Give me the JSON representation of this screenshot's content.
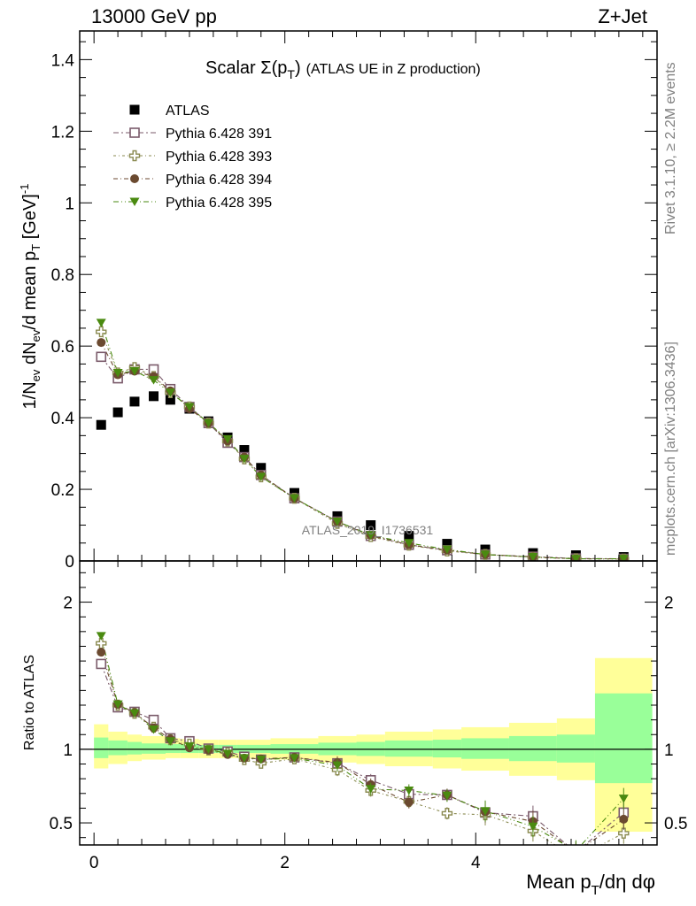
{
  "header": {
    "left": "13000 GeV pp",
    "right": "Z+Jet"
  },
  "side_labels": {
    "rivet": "Rivet 3.1.10, ≥ 2.2M events",
    "mcplots": "mcplots.cern.ch [arXiv:1306.3436]"
  },
  "watermark": "ATLAS_2019_I1736531",
  "colors": {
    "atlas": "#000000",
    "p391": "#7a5a6a",
    "p393": "#8a8a50",
    "p394": "#6b4a30",
    "p395": "#4a8a10",
    "band_green": "#99ff99",
    "band_yellow": "#ffff99"
  },
  "chart_data": [
    {
      "type": "scatter",
      "panel": "main",
      "title_main": "Scalar Σ(p",
      "title_sub": "T",
      "title_paren": ")",
      "title_rest": "(ATLAS UE in Z production)",
      "ylabel": "1/N_ev dN_ev/d mean p_T [GeV]^-1",
      "ylim": [
        0,
        1.48
      ],
      "yticks": [
        "0",
        "0.2",
        "0.4",
        "0.6",
        "0.8",
        "1",
        "1.2",
        "1.4"
      ],
      "ytick_values": [
        0,
        0.2,
        0.4,
        0.6,
        0.8,
        1.0,
        1.2,
        1.4
      ],
      "xlim": [
        -0.15,
        5.9
      ],
      "x": [
        0.075,
        0.25,
        0.425,
        0.625,
        0.8,
        1.0,
        1.2,
        1.4,
        1.575,
        1.75,
        2.1,
        2.55,
        2.9,
        3.3,
        3.7,
        4.1,
        4.6,
        5.05,
        5.55
      ],
      "series": [
        {
          "name": "ATLAS",
          "marker": "filled-square",
          "values": [
            0.38,
            0.415,
            0.445,
            0.46,
            0.45,
            0.425,
            0.39,
            0.345,
            0.31,
            0.26,
            0.19,
            0.125,
            0.1,
            0.07,
            0.048,
            0.032,
            0.022,
            0.016,
            0.011
          ]
        },
        {
          "name": "Pythia 6.428 391",
          "marker": "open-square",
          "values": [
            0.57,
            0.51,
            0.535,
            0.535,
            0.48,
            0.43,
            0.385,
            0.33,
            0.29,
            0.24,
            0.175,
            0.11,
            0.07,
            0.045,
            0.03,
            0.018,
            0.012,
            0.007,
            0.006
          ]
        },
        {
          "name": "Pythia 6.428 393",
          "marker": "open-cross",
          "values": [
            0.64,
            0.525,
            0.54,
            0.515,
            0.47,
            0.43,
            0.385,
            0.335,
            0.285,
            0.235,
            0.175,
            0.105,
            0.068,
            0.044,
            0.028,
            0.018,
            0.01,
            0.006,
            0.005
          ]
        },
        {
          "name": "Pythia 6.428 394",
          "marker": "filled-circle",
          "values": [
            0.61,
            0.52,
            0.53,
            0.515,
            0.475,
            0.425,
            0.385,
            0.335,
            0.29,
            0.24,
            0.175,
            0.11,
            0.072,
            0.045,
            0.03,
            0.018,
            0.011,
            0.006,
            0.006
          ]
        },
        {
          "name": "Pythia 6.428 395",
          "marker": "filled-triangle-down",
          "values": [
            0.665,
            0.525,
            0.53,
            0.505,
            0.47,
            0.43,
            0.385,
            0.34,
            0.285,
            0.235,
            0.175,
            0.11,
            0.072,
            0.05,
            0.032,
            0.018,
            0.011,
            0.006,
            0.006
          ]
        }
      ]
    },
    {
      "type": "scatter",
      "panel": "ratio",
      "ylabel": "Ratio to ATLAS",
      "ylim": [
        0.35,
        2.28
      ],
      "yticks": [
        "0.5",
        "1",
        "2"
      ],
      "ytick_values": [
        0.5,
        1,
        2
      ],
      "xlabel": "Mean p_T/dη dφ",
      "xticks": [
        "0",
        "2",
        "4"
      ],
      "xtick_values": [
        0,
        2,
        4
      ],
      "bin_edges": [
        0,
        0.15,
        0.35,
        0.5,
        0.75,
        0.9,
        1.1,
        1.3,
        1.5,
        1.65,
        1.85,
        2.35,
        2.75,
        3.05,
        3.55,
        3.85,
        4.35,
        4.85,
        5.25,
        5.85
      ],
      "band_green": [
        [
          0.94,
          1.08
        ],
        [
          0.96,
          1.06
        ],
        [
          0.965,
          1.05
        ],
        [
          0.97,
          1.04
        ],
        [
          0.975,
          1.035
        ],
        [
          0.975,
          1.035
        ],
        [
          0.975,
          1.03
        ],
        [
          0.975,
          1.03
        ],
        [
          0.975,
          1.03
        ],
        [
          0.975,
          1.03
        ],
        [
          0.97,
          1.035
        ],
        [
          0.96,
          1.045
        ],
        [
          0.955,
          1.05
        ],
        [
          0.95,
          1.06
        ],
        [
          0.945,
          1.065
        ],
        [
          0.935,
          1.075
        ],
        [
          0.92,
          1.09
        ],
        [
          0.91,
          1.1
        ],
        [
          0.77,
          1.38
        ]
      ],
      "band_yellow": [
        [
          0.87,
          1.17
        ],
        [
          0.9,
          1.12
        ],
        [
          0.92,
          1.1
        ],
        [
          0.93,
          1.09
        ],
        [
          0.94,
          1.075
        ],
        [
          0.94,
          1.07
        ],
        [
          0.94,
          1.065
        ],
        [
          0.94,
          1.065
        ],
        [
          0.94,
          1.065
        ],
        [
          0.94,
          1.065
        ],
        [
          0.93,
          1.075
        ],
        [
          0.91,
          1.09
        ],
        [
          0.9,
          1.1
        ],
        [
          0.885,
          1.12
        ],
        [
          0.87,
          1.135
        ],
        [
          0.855,
          1.15
        ],
        [
          0.82,
          1.18
        ],
        [
          0.79,
          1.21
        ],
        [
          0.44,
          1.62
        ]
      ],
      "series": [
        {
          "name": "Pythia 6.428 391",
          "values": [
            1.58,
            1.285,
            1.255,
            1.2,
            1.075,
            1.055,
            1.005,
            0.985,
            0.95,
            0.93,
            0.945,
            0.905,
            0.79,
            0.695,
            0.69,
            0.57,
            0.545,
            0.3,
            0.57
          ]
        },
        {
          "name": "Pythia 6.428 393",
          "values": [
            1.72,
            1.3,
            1.245,
            1.15,
            1.065,
            1.035,
            0.995,
            0.975,
            0.93,
            0.905,
            0.935,
            0.86,
            0.72,
            0.645,
            0.565,
            0.555,
            0.445,
            0.26,
            0.43
          ]
        },
        {
          "name": "Pythia 6.428 394",
          "values": [
            1.66,
            1.305,
            1.25,
            1.145,
            1.07,
            1.01,
            0.995,
            0.965,
            0.94,
            0.935,
            0.945,
            0.91,
            0.76,
            0.64,
            0.69,
            0.575,
            0.51,
            0.3,
            0.525
          ]
        },
        {
          "name": "Pythia 6.428 395",
          "values": [
            1.77,
            1.305,
            1.245,
            1.135,
            1.055,
            1.02,
            1.0,
            0.97,
            0.94,
            0.93,
            0.94,
            0.89,
            0.73,
            0.72,
            0.685,
            0.58,
            0.475,
            0.31,
            0.665
          ]
        }
      ]
    }
  ]
}
